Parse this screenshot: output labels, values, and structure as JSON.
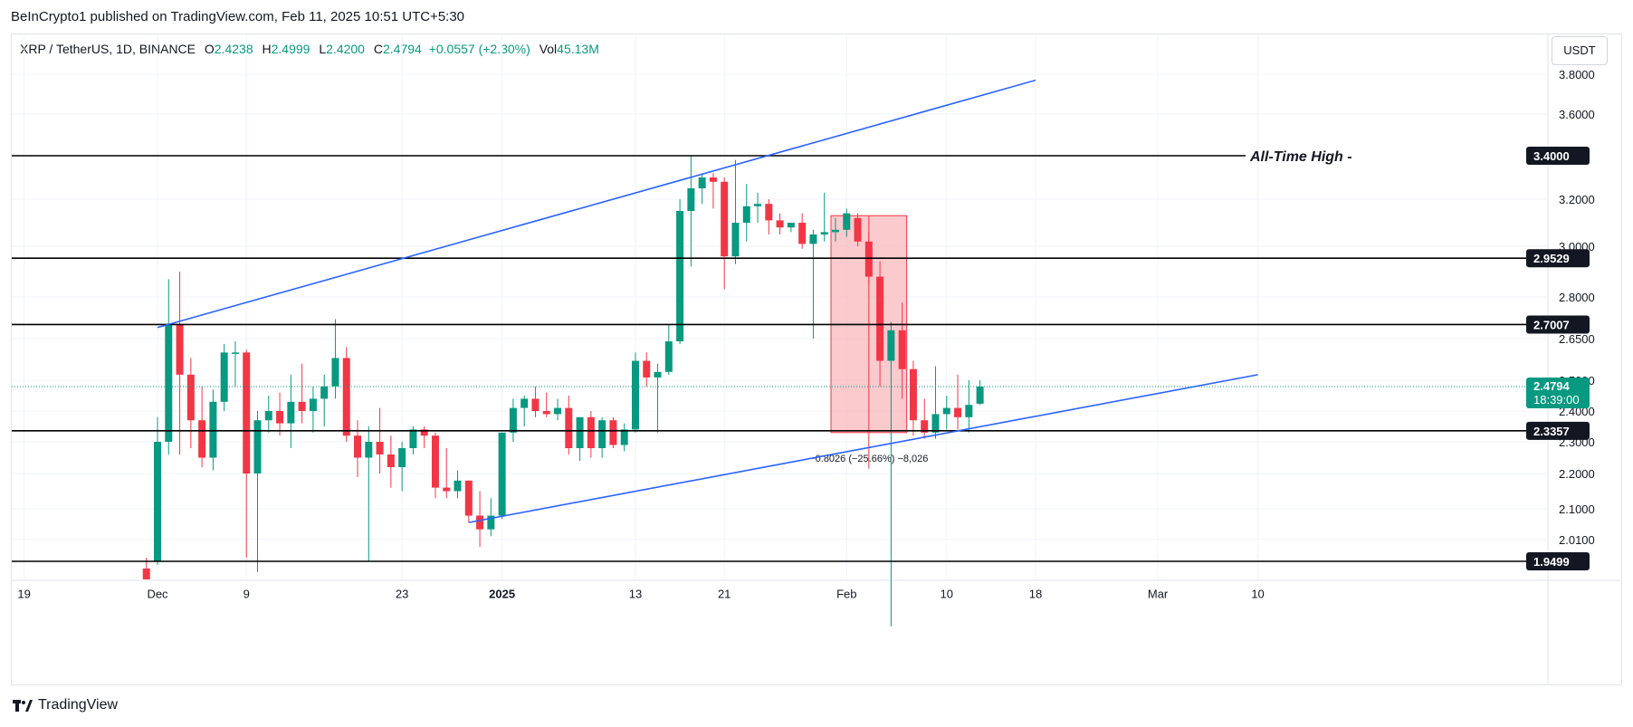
{
  "header": {
    "publisher": "BeInCrypto1 published on TradingView.com, Feb 11, 2025 10:51 UTC+5:30"
  },
  "legend": {
    "symbol": "XRP / TetherUS, 1D, BINANCE",
    "o_label": "O",
    "o": "2.4238",
    "h_label": "H",
    "h": "2.4999",
    "l_label": "L",
    "l": "2.4200",
    "c_label": "C",
    "c": "2.4794",
    "change": "+0.0557 (+2.30%)",
    "vol_label": "Vol",
    "vol": "45.13M"
  },
  "currency": "USDT",
  "footer": {
    "brand": "TradingView"
  },
  "colors": {
    "up": "#089981",
    "down": "#f23645",
    "trend": "#2962ff",
    "level": "#000000",
    "range_fill": "#f7a6ab"
  },
  "chart_data": {
    "type": "candlestick",
    "y_ticks": [
      2.01,
      2.1,
      2.2,
      2.3,
      2.4,
      2.5,
      2.65,
      2.8,
      3.0,
      3.2,
      3.6,
      3.8
    ],
    "y_tick_labels": [
      "2.0100",
      "2.1000",
      "2.2000",
      "2.3000",
      "2.4000",
      "2.5000",
      "2.6500",
      "2.8000",
      "3.0000",
      "3.2000",
      "3.6000",
      "3.8000"
    ],
    "x_ticks": [
      {
        "label": "19",
        "date": "2024-11-19",
        "bold": false
      },
      {
        "label": "Dec",
        "date": "2024-12-01",
        "bold": false
      },
      {
        "label": "9",
        "date": "2024-12-09",
        "bold": false
      },
      {
        "label": "23",
        "date": "2024-12-23",
        "bold": false
      },
      {
        "label": "2025",
        "date": "2025-01-01",
        "bold": true
      },
      {
        "label": "13",
        "date": "2025-01-13",
        "bold": false
      },
      {
        "label": "21",
        "date": "2025-01-21",
        "bold": false
      },
      {
        "label": "Feb",
        "date": "2025-02-01",
        "bold": false
      },
      {
        "label": "10",
        "date": "2025-02-10",
        "bold": false
      },
      {
        "label": "18",
        "date": "2025-02-18",
        "bold": false
      },
      {
        "label": "Mar",
        "date": "2025-03-01",
        "bold": false
      },
      {
        "label": "10",
        "date": "2025-03-10",
        "bold": false
      }
    ],
    "levels": [
      {
        "value": 3.4,
        "label": "3.4000",
        "note": "All-Time High"
      },
      {
        "value": 2.9529,
        "label": "2.9529",
        "note": ""
      },
      {
        "value": 2.7007,
        "label": "2.7007",
        "note": ""
      },
      {
        "value": 2.3357,
        "label": "2.3357",
        "note": ""
      },
      {
        "value": 1.9499,
        "label": "1.9499",
        "note": ""
      }
    ],
    "current_price": {
      "value": 2.4794,
      "label": "2.4794",
      "countdown": "18:39:00"
    },
    "trendlines": [
      {
        "name": "upper",
        "start": {
          "date": "2024-12-01",
          "price": 2.69
        },
        "end": {
          "date": "2025-02-18",
          "price": 3.77
        }
      },
      {
        "name": "lower",
        "start": {
          "date": "2024-12-29",
          "price": 2.06
        },
        "end": {
          "date": "2025-03-10",
          "price": 2.52
        }
      }
    ],
    "range_measure": {
      "start_date": "2025-01-31",
      "end_date": "2025-02-06",
      "high": 3.13,
      "low": 2.33,
      "label": "−0.8026 (−25.66%) −8,026"
    },
    "candles": [
      {
        "d": "2024-11-30",
        "o": 1.93,
        "h": 1.96,
        "l": 1.9,
        "c": 1.9
      },
      {
        "d": "2024-12-01",
        "o": 1.95,
        "h": 2.38,
        "l": 1.94,
        "c": 2.3
      },
      {
        "d": "2024-12-02",
        "o": 2.3,
        "h": 2.87,
        "l": 2.26,
        "c": 2.7
      },
      {
        "d": "2024-12-03",
        "o": 2.7,
        "h": 2.9,
        "l": 2.26,
        "c": 2.52
      },
      {
        "d": "2024-12-04",
        "o": 2.52,
        "h": 2.58,
        "l": 2.28,
        "c": 2.37
      },
      {
        "d": "2024-12-05",
        "o": 2.37,
        "h": 2.48,
        "l": 2.22,
        "c": 2.25
      },
      {
        "d": "2024-12-06",
        "o": 2.25,
        "h": 2.47,
        "l": 2.21,
        "c": 2.43
      },
      {
        "d": "2024-12-07",
        "o": 2.43,
        "h": 2.63,
        "l": 2.4,
        "c": 2.6
      },
      {
        "d": "2024-12-08",
        "o": 2.6,
        "h": 2.64,
        "l": 2.48,
        "c": 2.6
      },
      {
        "d": "2024-12-09",
        "o": 2.6,
        "h": 2.61,
        "l": 1.96,
        "c": 2.2
      },
      {
        "d": "2024-12-10",
        "o": 2.2,
        "h": 2.4,
        "l": 1.92,
        "c": 2.37
      },
      {
        "d": "2024-12-11",
        "o": 2.37,
        "h": 2.45,
        "l": 2.33,
        "c": 2.4
      },
      {
        "d": "2024-12-12",
        "o": 2.4,
        "h": 2.46,
        "l": 2.32,
        "c": 2.36
      },
      {
        "d": "2024-12-13",
        "o": 2.36,
        "h": 2.52,
        "l": 2.28,
        "c": 2.43
      },
      {
        "d": "2024-12-14",
        "o": 2.43,
        "h": 2.56,
        "l": 2.36,
        "c": 2.4
      },
      {
        "d": "2024-12-15",
        "o": 2.4,
        "h": 2.48,
        "l": 2.33,
        "c": 2.44
      },
      {
        "d": "2024-12-16",
        "o": 2.44,
        "h": 2.52,
        "l": 2.35,
        "c": 2.48
      },
      {
        "d": "2024-12-17",
        "o": 2.48,
        "h": 2.72,
        "l": 2.44,
        "c": 2.58
      },
      {
        "d": "2024-12-18",
        "o": 2.58,
        "h": 2.62,
        "l": 2.3,
        "c": 2.32
      },
      {
        "d": "2024-12-19",
        "o": 2.32,
        "h": 2.37,
        "l": 2.19,
        "c": 2.25
      },
      {
        "d": "2024-12-20",
        "o": 2.25,
        "h": 2.35,
        "l": 1.95,
        "c": 2.3
      },
      {
        "d": "2024-12-21",
        "o": 2.3,
        "h": 2.41,
        "l": 2.2,
        "c": 2.26
      },
      {
        "d": "2024-12-22",
        "o": 2.26,
        "h": 2.32,
        "l": 2.16,
        "c": 2.22
      },
      {
        "d": "2024-12-23",
        "o": 2.22,
        "h": 2.3,
        "l": 2.15,
        "c": 2.28
      },
      {
        "d": "2024-12-24",
        "o": 2.28,
        "h": 2.35,
        "l": 2.26,
        "c": 2.34
      },
      {
        "d": "2024-12-25",
        "o": 2.34,
        "h": 2.35,
        "l": 2.28,
        "c": 2.32
      },
      {
        "d": "2024-12-26",
        "o": 2.32,
        "h": 2.33,
        "l": 2.13,
        "c": 2.16
      },
      {
        "d": "2024-12-27",
        "o": 2.16,
        "h": 2.28,
        "l": 2.13,
        "c": 2.15
      },
      {
        "d": "2024-12-28",
        "o": 2.15,
        "h": 2.21,
        "l": 2.13,
        "c": 2.18
      },
      {
        "d": "2024-12-29",
        "o": 2.18,
        "h": 2.18,
        "l": 2.06,
        "c": 2.08
      },
      {
        "d": "2024-12-30",
        "o": 2.08,
        "h": 2.15,
        "l": 1.99,
        "c": 2.04
      },
      {
        "d": "2024-12-31",
        "o": 2.04,
        "h": 2.13,
        "l": 2.02,
        "c": 2.08
      },
      {
        "d": "2025-01-01",
        "o": 2.08,
        "h": 2.33,
        "l": 2.07,
        "c": 2.33
      },
      {
        "d": "2025-01-02",
        "o": 2.33,
        "h": 2.44,
        "l": 2.3,
        "c": 2.41
      },
      {
        "d": "2025-01-03",
        "o": 2.41,
        "h": 2.45,
        "l": 2.35,
        "c": 2.44
      },
      {
        "d": "2025-01-04",
        "o": 2.44,
        "h": 2.48,
        "l": 2.38,
        "c": 2.4
      },
      {
        "d": "2025-01-05",
        "o": 2.4,
        "h": 2.46,
        "l": 2.38,
        "c": 2.39
      },
      {
        "d": "2025-01-06",
        "o": 2.39,
        "h": 2.44,
        "l": 2.37,
        "c": 2.41
      },
      {
        "d": "2025-01-07",
        "o": 2.41,
        "h": 2.45,
        "l": 2.26,
        "c": 2.28
      },
      {
        "d": "2025-01-08",
        "o": 2.28,
        "h": 2.38,
        "l": 2.24,
        "c": 2.38
      },
      {
        "d": "2025-01-09",
        "o": 2.38,
        "h": 2.4,
        "l": 2.25,
        "c": 2.28
      },
      {
        "d": "2025-01-10",
        "o": 2.28,
        "h": 2.38,
        "l": 2.25,
        "c": 2.37
      },
      {
        "d": "2025-01-11",
        "o": 2.37,
        "h": 2.38,
        "l": 2.28,
        "c": 2.29
      },
      {
        "d": "2025-01-12",
        "o": 2.29,
        "h": 2.36,
        "l": 2.27,
        "c": 2.34
      },
      {
        "d": "2025-01-13",
        "o": 2.34,
        "h": 2.6,
        "l": 2.33,
        "c": 2.57
      },
      {
        "d": "2025-01-14",
        "o": 2.57,
        "h": 2.6,
        "l": 2.48,
        "c": 2.51
      },
      {
        "d": "2025-01-15",
        "o": 2.51,
        "h": 2.56,
        "l": 2.33,
        "c": 2.53
      },
      {
        "d": "2025-01-16",
        "o": 2.53,
        "h": 2.7,
        "l": 2.52,
        "c": 2.64
      },
      {
        "d": "2025-01-17",
        "o": 2.64,
        "h": 3.2,
        "l": 2.63,
        "c": 3.15
      },
      {
        "d": "2025-01-18",
        "o": 3.15,
        "h": 3.4,
        "l": 2.92,
        "c": 3.25
      },
      {
        "d": "2025-01-19",
        "o": 3.25,
        "h": 3.32,
        "l": 3.18,
        "c": 3.3
      },
      {
        "d": "2025-01-20",
        "o": 3.3,
        "h": 3.32,
        "l": 3.16,
        "c": 3.28
      },
      {
        "d": "2025-01-21",
        "o": 3.28,
        "h": 3.3,
        "l": 2.83,
        "c": 2.96
      },
      {
        "d": "2025-01-22",
        "o": 2.96,
        "h": 3.38,
        "l": 2.93,
        "c": 3.1
      },
      {
        "d": "2025-01-23",
        "o": 3.1,
        "h": 3.27,
        "l": 3.02,
        "c": 3.17
      },
      {
        "d": "2025-01-24",
        "o": 3.17,
        "h": 3.23,
        "l": 3.1,
        "c": 3.18
      },
      {
        "d": "2025-01-25",
        "o": 3.18,
        "h": 3.2,
        "l": 3.05,
        "c": 3.11
      },
      {
        "d": "2025-01-26",
        "o": 3.11,
        "h": 3.14,
        "l": 3.05,
        "c": 3.08
      },
      {
        "d": "2025-01-27",
        "o": 3.08,
        "h": 3.1,
        "l": 3.06,
        "c": 3.1
      },
      {
        "d": "2025-01-28",
        "o": 3.1,
        "h": 3.14,
        "l": 2.99,
        "c": 3.01
      },
      {
        "d": "2025-01-29",
        "o": 3.01,
        "h": 3.07,
        "l": 2.65,
        "c": 3.05
      },
      {
        "d": "2025-01-30",
        "o": 3.05,
        "h": 3.23,
        "l": 3.02,
        "c": 3.06
      },
      {
        "d": "2025-01-31",
        "o": 3.06,
        "h": 3.12,
        "l": 3.02,
        "c": 3.07
      },
      {
        "d": "2025-02-01",
        "o": 3.07,
        "h": 3.16,
        "l": 3.04,
        "c": 3.14
      },
      {
        "d": "2025-02-02",
        "o": 3.12,
        "h": 3.14,
        "l": 3.0,
        "c": 3.02
      },
      {
        "d": "2025-02-03",
        "o": 3.02,
        "h": 3.06,
        "l": 2.85,
        "c": 2.88
      },
      {
        "d": "2025-02-04",
        "o": 2.88,
        "h": 2.94,
        "l": 2.48,
        "c": 2.57
      },
      {
        "d": "2025-02-05",
        "o": 2.57,
        "h": 2.71,
        "l": 1.77,
        "c": 2.68
      },
      {
        "d": "2025-02-06",
        "o": 2.68,
        "h": 2.78,
        "l": 2.44,
        "c": 2.54
      },
      {
        "d": "2025-02-07",
        "o": 2.54,
        "h": 2.57,
        "l": 2.32,
        "c": 2.37
      },
      {
        "d": "2025-02-08",
        "o": 2.37,
        "h": 2.44,
        "l": 2.31,
        "c": 2.33
      },
      {
        "d": "2025-02-09",
        "o": 2.33,
        "h": 2.55,
        "l": 2.31,
        "c": 2.39
      },
      {
        "d": "2025-02-10",
        "o": 2.39,
        "h": 2.45,
        "l": 2.34,
        "c": 2.41
      },
      {
        "d": "2025-02-11",
        "o": 2.41,
        "h": 2.52,
        "l": 2.34,
        "c": 2.38
      },
      {
        "d": "2025-02-12",
        "o": 2.38,
        "h": 2.5,
        "l": 2.33,
        "c": 2.42
      },
      {
        "d": "2025-02-13",
        "o": 2.4238,
        "h": 2.4999,
        "l": 2.42,
        "c": 2.4794
      }
    ]
  }
}
